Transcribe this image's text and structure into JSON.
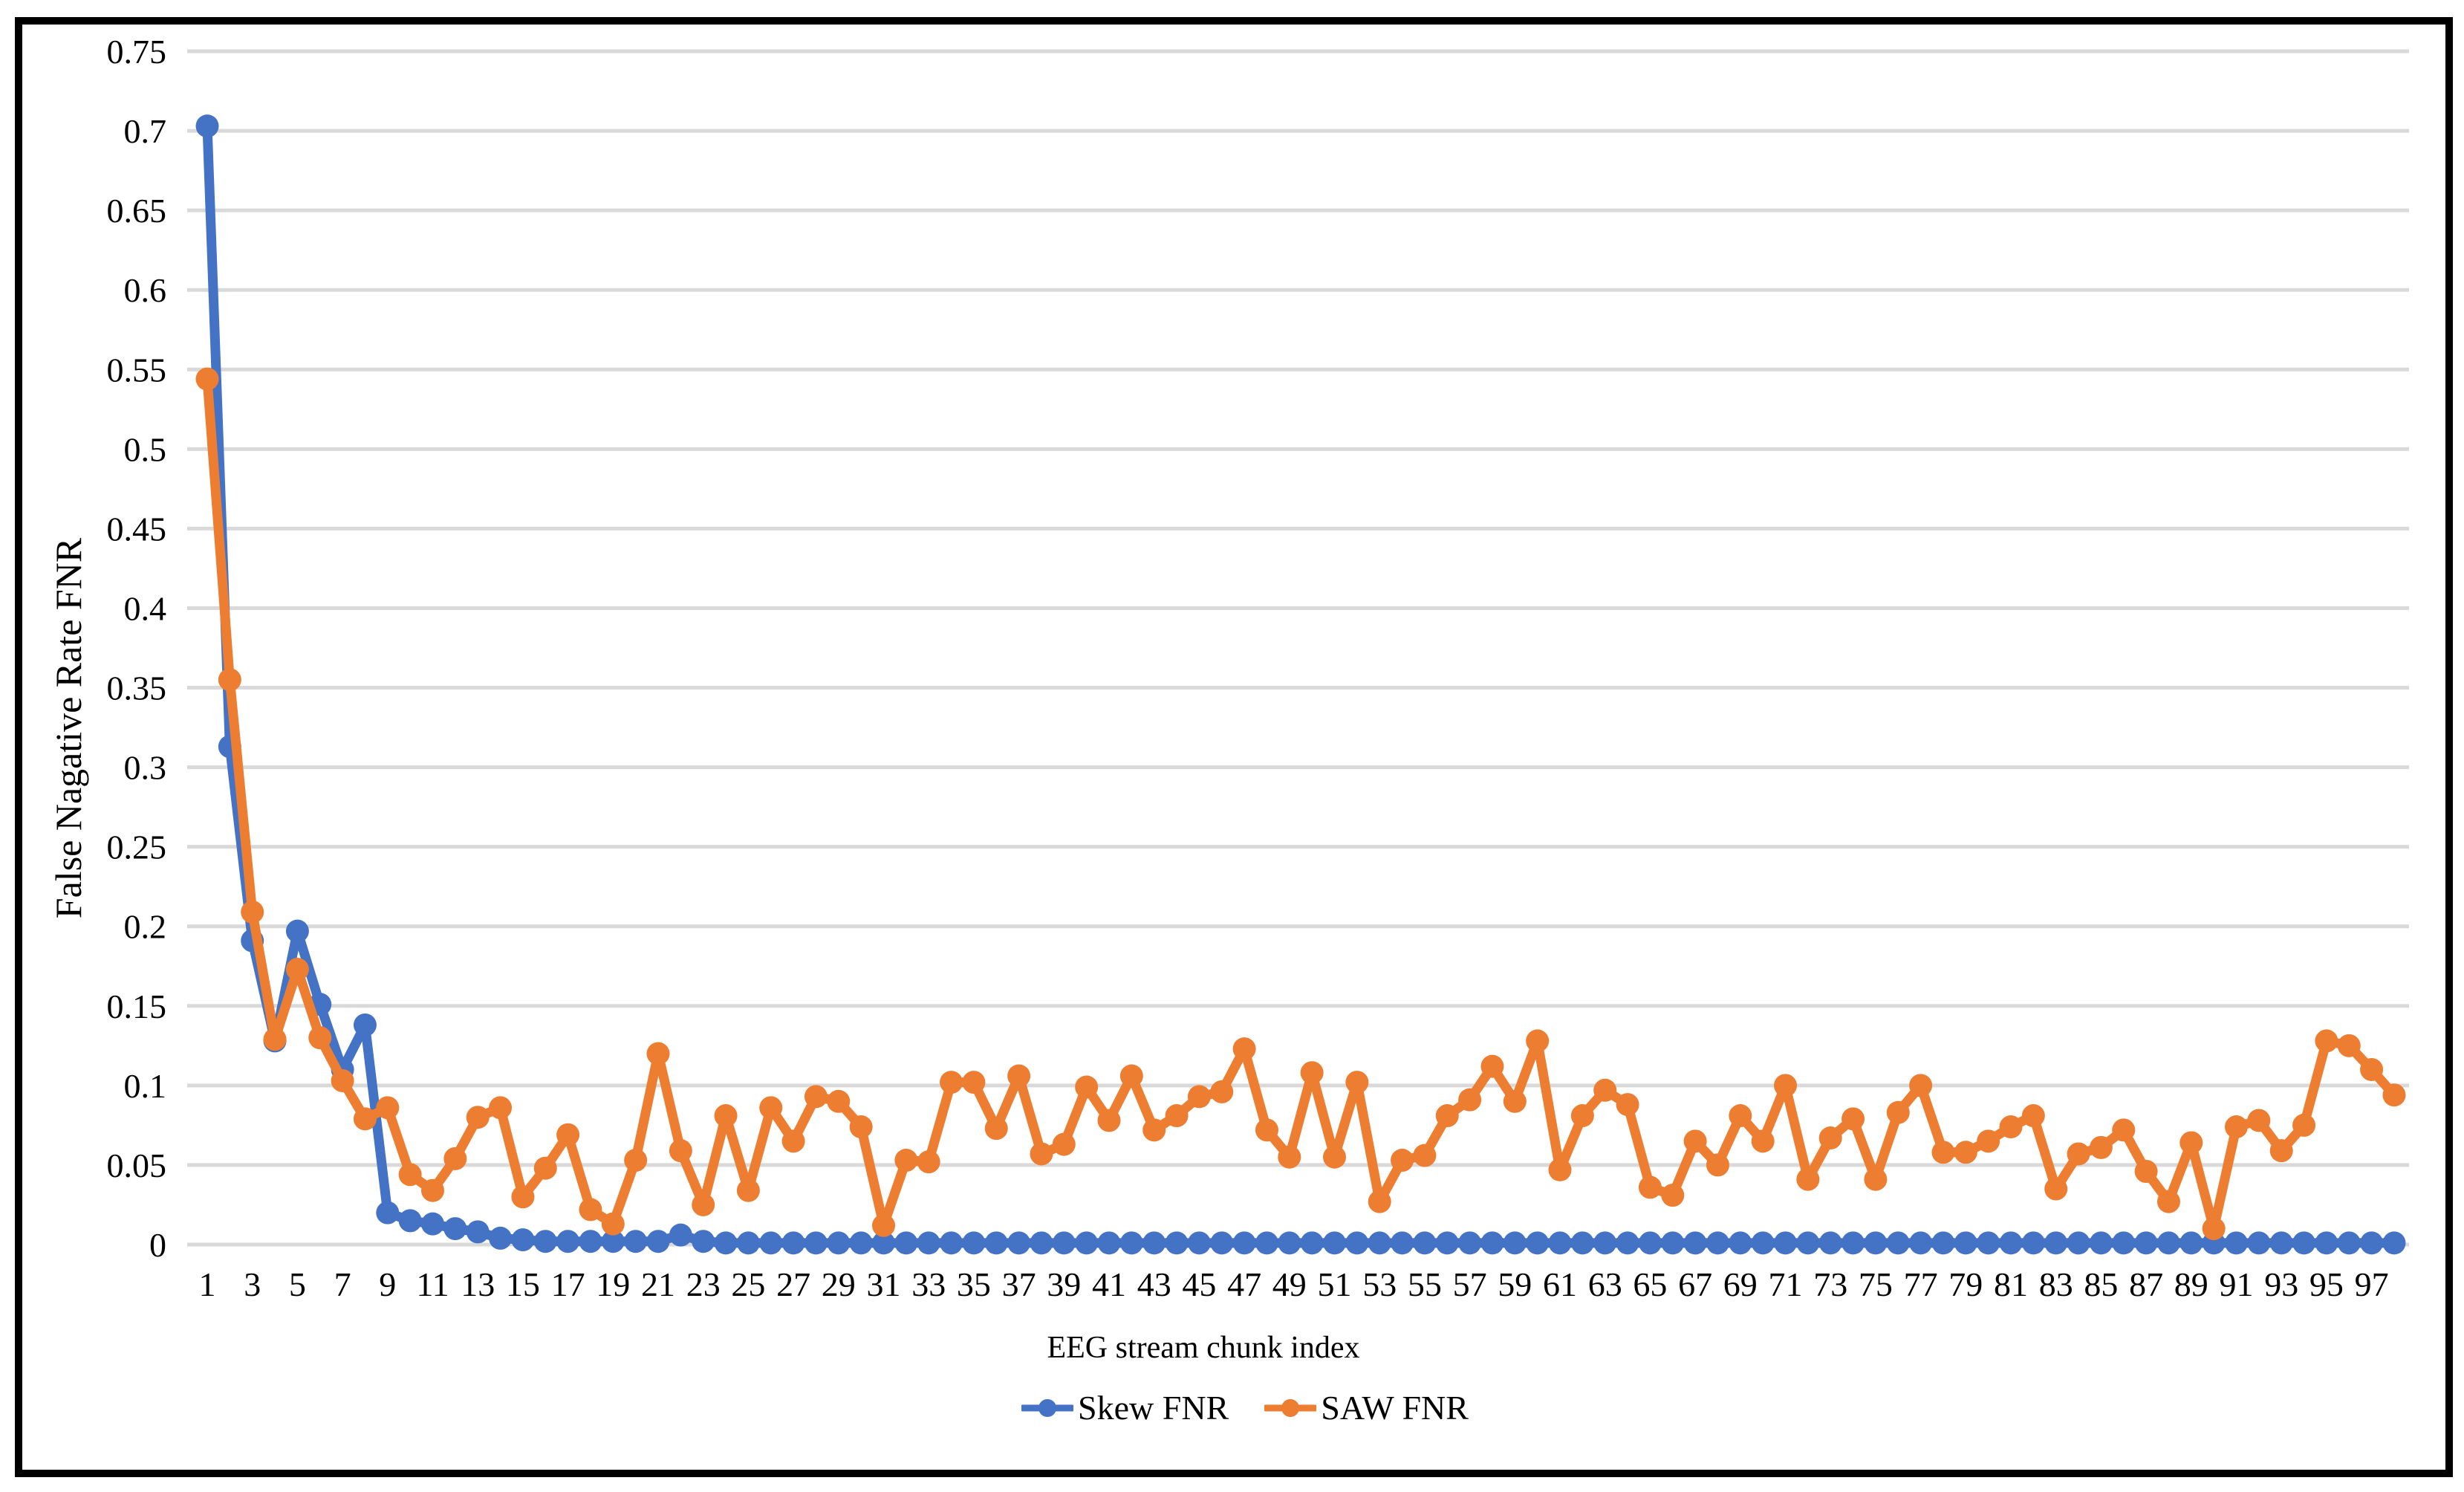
{
  "chart_data": {
    "type": "line",
    "title": "",
    "xlabel": "EEG stream chunk index",
    "ylabel": "False Nagative Rate FNR",
    "x_range": [
      1,
      98
    ],
    "ylim": [
      0,
      0.75
    ],
    "y_tick_step": 0.05,
    "grid": "horizontal-only",
    "gridline_color": "#D9D9D9",
    "legend_position": "bottom",
    "y_tick_labels": [
      "0",
      "0.05",
      "0.1",
      "0.15",
      "0.2",
      "0.25",
      "0.3",
      "0.35",
      "0.4",
      "0.45",
      "0.5",
      "0.55",
      "0.6",
      "0.65",
      "0.7",
      "0.75"
    ],
    "x_tick_labels": [
      "1",
      "3",
      "5",
      "7",
      "9",
      "11",
      "13",
      "15",
      "17",
      "19",
      "21",
      "23",
      "25",
      "27",
      "29",
      "31",
      "33",
      "35",
      "37",
      "39",
      "41",
      "43",
      "45",
      "47",
      "49",
      "51",
      "53",
      "55",
      "57",
      "59",
      "61",
      "63",
      "65",
      "67",
      "69",
      "71",
      "73",
      "75",
      "77",
      "79",
      "81",
      "83",
      "85",
      "87",
      "89",
      "91",
      "93",
      "95",
      "97"
    ],
    "series": [
      {
        "name": "Skew FNR",
        "color": "#4472C4",
        "values": [
          0.703,
          0.313,
          0.191,
          0.128,
          0.197,
          0.151,
          0.11,
          0.138,
          0.02,
          0.015,
          0.013,
          0.01,
          0.008,
          0.004,
          0.003,
          0.002,
          0.002,
          0.002,
          0.002,
          0.002,
          0.002,
          0.006,
          0.002,
          0.001,
          0.001,
          0.001,
          0.001,
          0.001,
          0.001,
          0.001,
          0.001,
          0.001,
          0.001,
          0.001,
          0.001,
          0.001,
          0.001,
          0.001,
          0.001,
          0.001,
          0.001,
          0.001,
          0.001,
          0.001,
          0.001,
          0.001,
          0.001,
          0.001,
          0.001,
          0.001,
          0.001,
          0.001,
          0.001,
          0.001,
          0.001,
          0.001,
          0.001,
          0.001,
          0.001,
          0.001,
          0.001,
          0.001,
          0.001,
          0.001,
          0.001,
          0.001,
          0.001,
          0.001,
          0.001,
          0.001,
          0.001,
          0.001,
          0.001,
          0.001,
          0.001,
          0.001,
          0.001,
          0.001,
          0.001,
          0.001,
          0.001,
          0.001,
          0.001,
          0.001,
          0.001,
          0.001,
          0.001,
          0.001,
          0.001,
          0.001,
          0.001,
          0.001,
          0.001,
          0.001,
          0.001,
          0.001,
          0.001,
          0.001
        ]
      },
      {
        "name": "SAW FNR",
        "color": "#ED7D31",
        "values": [
          0.544,
          0.355,
          0.209,
          0.129,
          0.173,
          0.13,
          0.103,
          0.079,
          0.086,
          0.044,
          0.034,
          0.054,
          0.08,
          0.086,
          0.03,
          0.048,
          0.069,
          0.022,
          0.013,
          0.053,
          0.12,
          0.059,
          0.025,
          0.081,
          0.034,
          0.086,
          0.065,
          0.093,
          0.09,
          0.074,
          0.012,
          0.053,
          0.052,
          0.102,
          0.102,
          0.073,
          0.106,
          0.057,
          0.063,
          0.099,
          0.078,
          0.106,
          0.072,
          0.081,
          0.093,
          0.096,
          0.123,
          0.072,
          0.055,
          0.108,
          0.055,
          0.102,
          0.027,
          0.053,
          0.056,
          0.081,
          0.091,
          0.112,
          0.09,
          0.128,
          0.047,
          0.081,
          0.097,
          0.088,
          0.036,
          0.031,
          0.065,
          0.05,
          0.081,
          0.065,
          0.1,
          0.041,
          0.067,
          0.079,
          0.041,
          0.083,
          0.1,
          0.058,
          0.058,
          0.065,
          0.074,
          0.081,
          0.035,
          0.057,
          0.061,
          0.072,
          0.046,
          0.027,
          0.064,
          0.01,
          0.074,
          0.078,
          0.059,
          0.075,
          0.128,
          0.125,
          0.11,
          0.094
        ]
      }
    ]
  }
}
